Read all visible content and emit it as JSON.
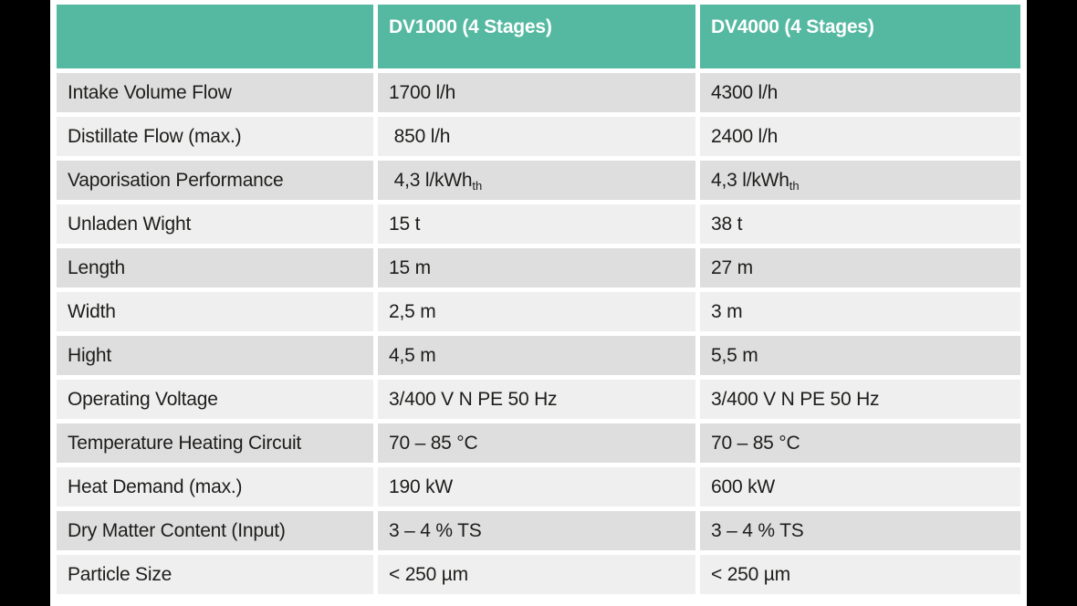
{
  "colors": {
    "header_teal": "#55b9a2",
    "row_dark": "#dedede",
    "row_light": "#efefef",
    "text": "#1d1d1b",
    "header_text": "#ffffff",
    "side_bars": "#000000"
  },
  "table": {
    "columns": [
      "",
      "DV1000 (4 Stages)",
      "DV4000 (4 Stages)"
    ],
    "rows": [
      {
        "label": "Intake Volume Flow",
        "dv1000": {
          "text": "1700 l/h"
        },
        "dv4000": {
          "text": "4300 l/h"
        }
      },
      {
        "label": "Distillate Flow (max.)",
        "dv1000": {
          "text": " 850 l/h"
        },
        "dv4000": {
          "text": "2400 l/h"
        }
      },
      {
        "label": "Vaporisation Performance",
        "dv1000": {
          "text": " 4,3 l/kWh",
          "sub": "th"
        },
        "dv4000": {
          "text": "4,3 l/kWh",
          "sub": "th"
        }
      },
      {
        "label": "Unladen Wight",
        "dv1000": {
          "text": "15 t"
        },
        "dv4000": {
          "text": "38 t"
        }
      },
      {
        "label": "Length",
        "dv1000": {
          "text": "15 m"
        },
        "dv4000": {
          "text": "27 m"
        }
      },
      {
        "label": "Width",
        "dv1000": {
          "text": "2,5 m"
        },
        "dv4000": {
          "text": "3 m"
        }
      },
      {
        "label": "Hight",
        "dv1000": {
          "text": "4,5 m"
        },
        "dv4000": {
          "text": "5,5 m"
        }
      },
      {
        "label": "Operating Voltage",
        "dv1000": {
          "text": "3/400 V N PE 50 Hz"
        },
        "dv4000": {
          "text": "3/400 V N PE 50 Hz"
        }
      },
      {
        "label": "Temperature Heating Circuit",
        "dv1000": {
          "text": "70 – 85 °C"
        },
        "dv4000": {
          "text": "70 – 85 °C"
        }
      },
      {
        "label": "Heat Demand (max.)",
        "dv1000": {
          "text": "190 kW"
        },
        "dv4000": {
          "text": "600 kW"
        }
      },
      {
        "label": "Dry Matter Content (Input)",
        "dv1000": {
          "text": "3 – 4 % TS"
        },
        "dv4000": {
          "text": "3 – 4 % TS"
        }
      },
      {
        "label": "Particle Size",
        "dv1000": {
          "text": "< 250 µm"
        },
        "dv4000": {
          "text": "< 250 µm"
        }
      }
    ]
  }
}
